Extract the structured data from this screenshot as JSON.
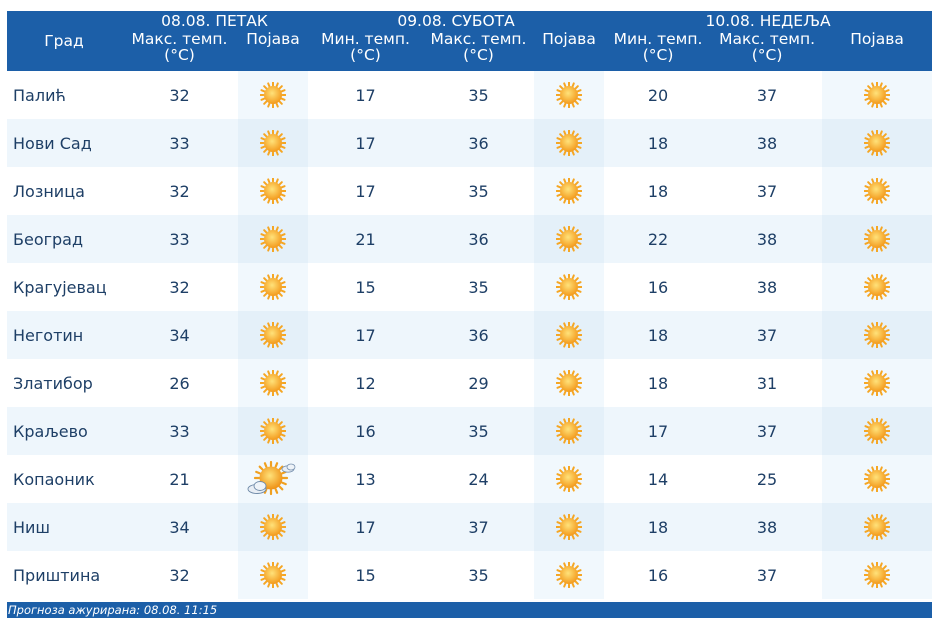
{
  "header": {
    "city_label": "Град",
    "days": [
      {
        "date": "08.08. ПЕТАК"
      },
      {
        "date": "09.08. СУБОТА"
      },
      {
        "date": "10.08. НЕДЕЉА"
      }
    ],
    "min_temp": "Мин. темп.",
    "max_temp": "Макс. темп.",
    "unit": "(°C)",
    "phenomenon": "Појава"
  },
  "rows": [
    {
      "city": "Палић",
      "d1_max": "32",
      "d1_icon": "sun-icon",
      "d2_min": "17",
      "d2_max": "35",
      "d2_icon": "sun-icon",
      "d3_min": "20",
      "d3_max": "37",
      "d3_icon": "sun-icon"
    },
    {
      "city": "Нови Сад",
      "d1_max": "33",
      "d1_icon": "sun-icon",
      "d2_min": "17",
      "d2_max": "36",
      "d2_icon": "sun-icon",
      "d3_min": "18",
      "d3_max": "38",
      "d3_icon": "sun-icon"
    },
    {
      "city": "Лозница",
      "d1_max": "32",
      "d1_icon": "sun-icon",
      "d2_min": "17",
      "d2_max": "35",
      "d2_icon": "sun-icon",
      "d3_min": "18",
      "d3_max": "37",
      "d3_icon": "sun-icon"
    },
    {
      "city": "Београд",
      "d1_max": "33",
      "d1_icon": "sun-icon",
      "d2_min": "21",
      "d2_max": "36",
      "d2_icon": "sun-icon",
      "d3_min": "22",
      "d3_max": "38",
      "d3_icon": "sun-icon"
    },
    {
      "city": "Крагујевац",
      "d1_max": "32",
      "d1_icon": "sun-icon",
      "d2_min": "15",
      "d2_max": "35",
      "d2_icon": "sun-icon",
      "d3_min": "16",
      "d3_max": "38",
      "d3_icon": "sun-icon"
    },
    {
      "city": "Неготин",
      "d1_max": "34",
      "d1_icon": "sun-icon",
      "d2_min": "17",
      "d2_max": "36",
      "d2_icon": "sun-icon",
      "d3_min": "18",
      "d3_max": "37",
      "d3_icon": "sun-icon"
    },
    {
      "city": "Златибор",
      "d1_max": "26",
      "d1_icon": "sun-icon",
      "d2_min": "12",
      "d2_max": "29",
      "d2_icon": "sun-icon",
      "d3_min": "18",
      "d3_max": "31",
      "d3_icon": "sun-icon"
    },
    {
      "city": "Краљево",
      "d1_max": "33",
      "d1_icon": "sun-icon",
      "d2_min": "16",
      "d2_max": "35",
      "d2_icon": "sun-icon",
      "d3_min": "17",
      "d3_max": "37",
      "d3_icon": "sun-icon"
    },
    {
      "city": "Копаоник",
      "d1_max": "21",
      "d1_icon": "partly-cloudy-icon",
      "d2_min": "13",
      "d2_max": "24",
      "d2_icon": "sun-icon",
      "d3_min": "14",
      "d3_max": "25",
      "d3_icon": "sun-icon"
    },
    {
      "city": "Ниш",
      "d1_max": "34",
      "d1_icon": "sun-icon",
      "d2_min": "17",
      "d2_max": "37",
      "d2_icon": "sun-icon",
      "d3_min": "18",
      "d3_max": "38",
      "d3_icon": "sun-icon"
    },
    {
      "city": "Приштина",
      "d1_max": "32",
      "d1_icon": "sun-icon",
      "d2_min": "15",
      "d2_max": "35",
      "d2_icon": "sun-icon",
      "d3_min": "16",
      "d3_max": "37",
      "d3_icon": "sun-icon"
    }
  ],
  "footer": {
    "updated": "Прогноза ажурирана:  08.08.  11:15"
  },
  "colors": {
    "header_bg": "#1c5fa8",
    "row_alt_bg": "#eef6fc",
    "text": "#1e3f66",
    "sun": "#f5a623"
  }
}
